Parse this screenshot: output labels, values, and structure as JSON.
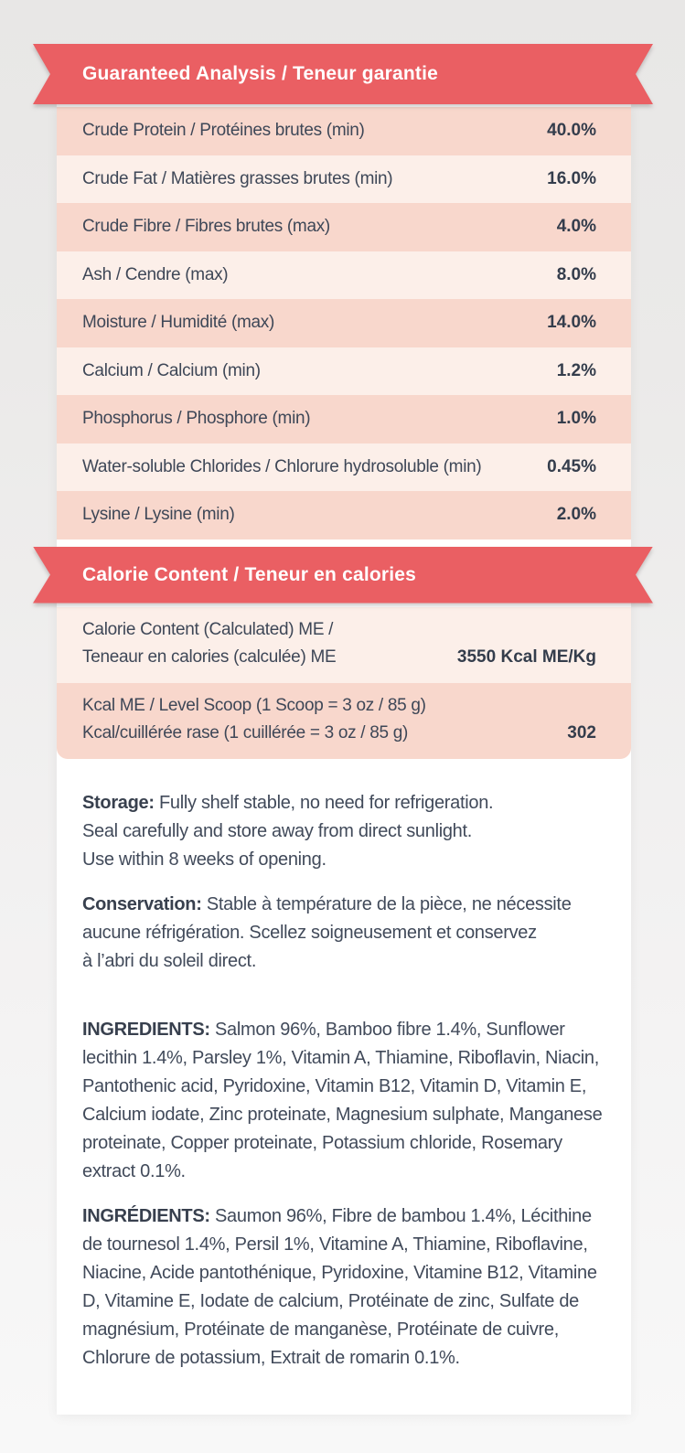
{
  "colors": {
    "ribbon_red": "#ea5f63",
    "row_pink": "#f8d7cc",
    "row_light": "#fcefe9",
    "text_dark": "#3e4757",
    "value_dark": "#343d4c",
    "card_white": "#ffffff",
    "page_gray_top": "#e8e7e6",
    "page_gray_bottom": "#f8f8f8"
  },
  "analysis": {
    "title": "Guaranteed Analysis / Teneur garantie",
    "rows": [
      {
        "label": "Crude Protein / Protéines brutes  (min)",
        "value": "40.0%"
      },
      {
        "label": "Crude Fat / Matières grasses brutes (min)",
        "value": "16.0%"
      },
      {
        "label": "Crude Fibre / Fibres brutes (max)",
        "value": "4.0%"
      },
      {
        "label": "Ash / Cendre (max)",
        "value": "8.0%"
      },
      {
        "label": "Moisture / Humidité (max)",
        "value": "14.0%"
      },
      {
        "label": "Calcium / Calcium  (min)",
        "value": "1.2%"
      },
      {
        "label": "Phosphorus / Phosphore (min)",
        "value": "1.0%"
      },
      {
        "label": "Water-soluble Chlorides / Chlorure hydrosoluble (min)",
        "value": "0.45%"
      },
      {
        "label": "Lysine / Lysine (min)",
        "value": "2.0%"
      }
    ]
  },
  "calories": {
    "title": "Calorie Content  / Teneur en calories",
    "rows": [
      {
        "line1": "Calorie Content (Calculated) ME /",
        "line2": "Teneaur en calories (calculée) ME",
        "value": "3550 Kcal ME/Kg"
      },
      {
        "line1": "Kcal ME / Level Scoop (1 Scoop = 3 oz / 85 g)",
        "line2": "Kcal/cuillérée rase (1 cuillérée = 3 oz / 85 g)",
        "value": "302"
      }
    ]
  },
  "storage_en": {
    "label": "Storage:",
    "line1": " Fully shelf stable, no need for refrigeration.",
    "line2": "Seal carefully and store away from direct sunlight.",
    "line3": "Use within 8 weeks of opening."
  },
  "storage_fr": {
    "label": "Conservation:",
    "line1": " Stable à température de la pièce, ne nécessite",
    "line2": "aucune réfrigération. Scellez soigneusement et conservez",
    "line3": "à l’abri du soleil direct."
  },
  "ingredients": {
    "en_label": "INGREDIENTS:",
    "en_text": " Salmon 96%, Bamboo fibre 1.4%, Sunflower lecithin 1.4%, Parsley 1%, Vitamin A, Thiamine, Riboflavin, Niacin, Pantothenic acid, Pyridoxine, Vitamin B12, Vitamin D, Vitamin E, Calcium iodate, Zinc proteinate, Magnesium sulphate, Manganese proteinate, Copper proteinate, Potassium chloride, Rosemary extract 0.1%.",
    "fr_label": "INGRÉDIENTS:",
    "fr_text": " Saumon 96%, Fibre de bambou 1.4%, Lécithine de tournesol 1.4%, Persil 1%, Vitamine A, Thiamine, Riboflavine, Niacine, Acide pantothénique, Pyridoxine, Vitamine B12, Vitamine D, Vitamine E, Iodate de calcium, Protéinate de zinc, Sulfate de magnésium, Protéinate de manganèse, Protéinate de cuivre, Chlorure de potassium, Extrait de romarin 0.1%."
  }
}
